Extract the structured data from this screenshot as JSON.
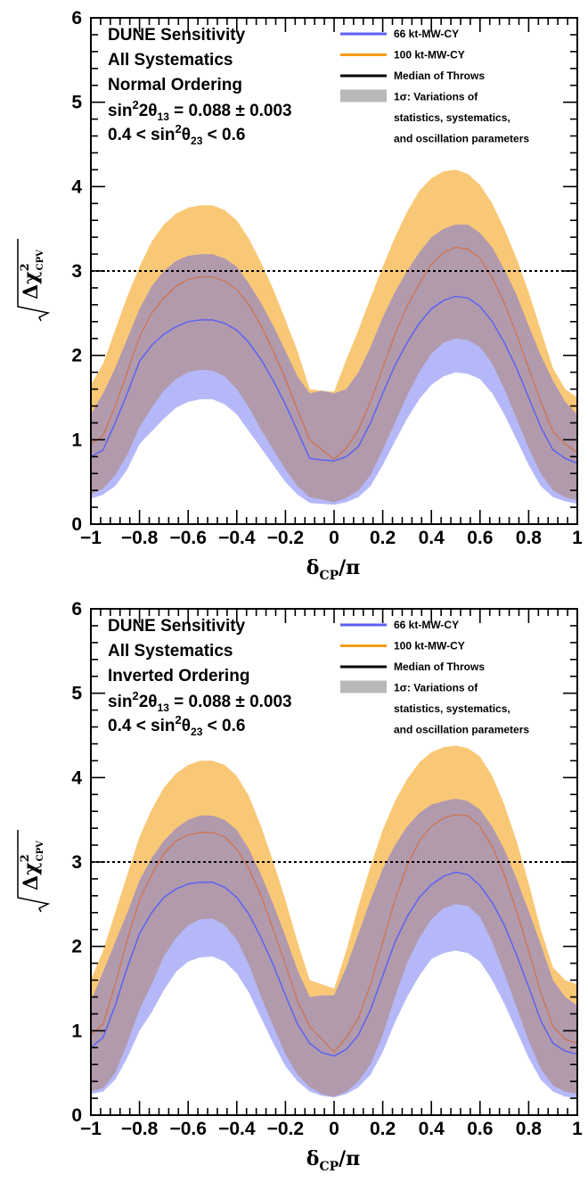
{
  "chart_data": [
    {
      "type": "area",
      "xlabel": "δCP/π",
      "ylabel": "√Δχ²CPV",
      "xlim": [
        -1,
        1
      ],
      "ylim": [
        0,
        6
      ],
      "x_ticks": [
        "−1",
        "−0.8",
        "−0.6",
        "−0.4",
        "−0.2",
        "0",
        "0.2",
        "0.4",
        "0.6",
        "0.8",
        "1"
      ],
      "y_ticks": [
        "0",
        "1",
        "2",
        "3",
        "4",
        "5",
        "6"
      ],
      "reference_line": 3,
      "annotations": [
        "DUNE Sensitivity",
        "All Systematics",
        "Normal Ordering",
        "sin²2θ₁₃ = 0.088 ± 0.003",
        "0.4 < sin²θ₂₃ < 0.6"
      ],
      "legend": {
        "placement": "top-right",
        "entries": [
          {
            "label": "66 kt-MW-CY",
            "color": "#5c62f0",
            "style": "line"
          },
          {
            "label": "100 kt-MW-CY",
            "color": "#f59b12",
            "style": "line"
          },
          {
            "label": "Median of Throws",
            "color": "#000000",
            "style": "line"
          },
          {
            "label": "1σ: Variations of",
            "color": "#b9b9b9",
            "style": "box"
          },
          {
            "label": "statistics, systematics,",
            "style": "text"
          },
          {
            "label": "and oscillation parameters",
            "style": "text"
          }
        ]
      },
      "x": [
        -1.0,
        -0.95,
        -0.9,
        -0.85,
        -0.8,
        -0.75,
        -0.7,
        -0.65,
        -0.6,
        -0.55,
        -0.5,
        -0.45,
        -0.4,
        -0.35,
        -0.3,
        -0.25,
        -0.2,
        -0.15,
        -0.1,
        -0.05,
        0.0,
        0.05,
        0.1,
        0.15,
        0.2,
        0.25,
        0.3,
        0.35,
        0.4,
        0.45,
        0.5,
        0.55,
        0.6,
        0.65,
        0.7,
        0.75,
        0.8,
        0.85,
        0.9,
        0.95,
        1.0
      ],
      "series": [
        {
          "name": "66 kt-MW-CY",
          "color": "#5c62f0",
          "median": [
            0.8,
            0.88,
            1.2,
            1.55,
            1.93,
            2.12,
            2.25,
            2.34,
            2.4,
            2.42,
            2.42,
            2.38,
            2.3,
            2.15,
            1.95,
            1.7,
            1.42,
            1.1,
            0.78,
            0.76,
            0.75,
            0.8,
            0.92,
            1.2,
            1.55,
            1.88,
            2.15,
            2.38,
            2.55,
            2.65,
            2.7,
            2.68,
            2.58,
            2.4,
            2.15,
            1.85,
            1.5,
            1.15,
            0.88,
            0.78,
            0.72
          ],
          "lower": [
            0.3,
            0.35,
            0.45,
            0.65,
            0.95,
            1.1,
            1.25,
            1.38,
            1.45,
            1.48,
            1.48,
            1.42,
            1.3,
            1.1,
            0.9,
            0.7,
            0.5,
            0.35,
            0.25,
            0.24,
            0.23,
            0.26,
            0.32,
            0.45,
            0.7,
            0.98,
            1.25,
            1.48,
            1.65,
            1.75,
            1.8,
            1.78,
            1.72,
            1.55,
            1.3,
            1.0,
            0.7,
            0.45,
            0.32,
            0.27,
            0.24
          ],
          "upper": [
            1.3,
            1.55,
            1.85,
            2.2,
            2.55,
            2.82,
            3.0,
            3.12,
            3.18,
            3.2,
            3.2,
            3.15,
            3.05,
            2.85,
            2.62,
            2.35,
            2.05,
            1.75,
            1.55,
            1.58,
            1.55,
            1.6,
            1.8,
            2.1,
            2.45,
            2.75,
            3.0,
            3.22,
            3.4,
            3.5,
            3.55,
            3.55,
            3.45,
            3.28,
            3.02,
            2.72,
            2.35,
            2.0,
            1.7,
            1.45,
            1.3
          ]
        },
        {
          "name": "100 kt-MW-CY",
          "color": "#f59b12",
          "median": [
            0.95,
            1.05,
            1.4,
            1.8,
            2.22,
            2.5,
            2.68,
            2.82,
            2.9,
            2.93,
            2.93,
            2.88,
            2.78,
            2.6,
            2.35,
            2.05,
            1.72,
            1.35,
            1.0,
            0.88,
            0.77,
            0.9,
            1.12,
            1.45,
            1.85,
            2.25,
            2.58,
            2.85,
            3.08,
            3.22,
            3.28,
            3.26,
            3.15,
            2.92,
            2.62,
            2.25,
            1.85,
            1.45,
            1.1,
            0.95,
            0.85
          ],
          "lower": [
            0.35,
            0.42,
            0.58,
            0.82,
            1.15,
            1.38,
            1.58,
            1.72,
            1.8,
            1.83,
            1.82,
            1.75,
            1.6,
            1.38,
            1.12,
            0.88,
            0.65,
            0.45,
            0.32,
            0.29,
            0.26,
            0.31,
            0.4,
            0.58,
            0.88,
            1.2,
            1.52,
            1.8,
            2.02,
            2.15,
            2.2,
            2.18,
            2.1,
            1.9,
            1.6,
            1.25,
            0.9,
            0.6,
            0.4,
            0.32,
            0.28
          ],
          "upper": [
            1.65,
            1.9,
            2.3,
            2.7,
            3.05,
            3.35,
            3.55,
            3.68,
            3.75,
            3.78,
            3.78,
            3.72,
            3.6,
            3.38,
            3.1,
            2.78,
            2.42,
            2.05,
            1.6,
            1.58,
            1.57,
            1.95,
            2.3,
            2.68,
            3.05,
            3.4,
            3.7,
            3.95,
            4.1,
            4.18,
            4.2,
            4.15,
            4.02,
            3.8,
            3.5,
            3.15,
            2.75,
            2.3,
            1.85,
            1.6,
            1.5
          ]
        }
      ]
    },
    {
      "type": "area",
      "xlabel": "δCP/π",
      "ylabel": "√Δχ²CPV",
      "xlim": [
        -1,
        1
      ],
      "ylim": [
        0,
        6
      ],
      "x_ticks": [
        "−1",
        "−0.8",
        "−0.6",
        "−0.4",
        "−0.2",
        "0",
        "0.2",
        "0.4",
        "0.6",
        "0.8",
        "1"
      ],
      "y_ticks": [
        "0",
        "1",
        "2",
        "3",
        "4",
        "5",
        "6"
      ],
      "reference_line": 3,
      "annotations": [
        "DUNE Sensitivity",
        "All Systematics",
        "Inverted Ordering",
        "sin²2θ₁₃ = 0.088 ± 0.003",
        "0.4 < sin²θ₂₃ < 0.6"
      ],
      "legend": {
        "placement": "top-right",
        "entries": [
          {
            "label": "66 kt-MW-CY",
            "color": "#5c62f0",
            "style": "line"
          },
          {
            "label": "100 kt-MW-CY",
            "color": "#f59b12",
            "style": "line"
          },
          {
            "label": "Median of Throws",
            "color": "#000000",
            "style": "line"
          },
          {
            "label": "1σ: Variations of",
            "color": "#b9b9b9",
            "style": "box"
          },
          {
            "label": "statistics, systematics,",
            "style": "text"
          },
          {
            "label": "and oscillation parameters",
            "style": "text"
          }
        ]
      },
      "x": [
        -1.0,
        -0.95,
        -0.9,
        -0.85,
        -0.8,
        -0.75,
        -0.7,
        -0.65,
        -0.6,
        -0.55,
        -0.5,
        -0.45,
        -0.4,
        -0.35,
        -0.3,
        -0.25,
        -0.2,
        -0.15,
        -0.1,
        -0.05,
        0.0,
        0.05,
        0.1,
        0.15,
        0.2,
        0.25,
        0.3,
        0.35,
        0.4,
        0.45,
        0.5,
        0.55,
        0.6,
        0.65,
        0.7,
        0.75,
        0.8,
        0.85,
        0.9,
        0.95,
        1.0
      ],
      "series": [
        {
          "name": "66 kt-MW-CY",
          "color": "#5c62f0",
          "median": [
            0.8,
            0.92,
            1.3,
            1.75,
            2.15,
            2.4,
            2.58,
            2.68,
            2.74,
            2.76,
            2.76,
            2.7,
            2.58,
            2.38,
            2.1,
            1.78,
            1.42,
            1.08,
            0.85,
            0.74,
            0.7,
            0.78,
            0.95,
            1.25,
            1.65,
            2.05,
            2.35,
            2.58,
            2.73,
            2.83,
            2.88,
            2.85,
            2.72,
            2.52,
            2.25,
            1.9,
            1.52,
            1.12,
            0.85,
            0.76,
            0.72
          ],
          "lower": [
            0.25,
            0.28,
            0.42,
            0.68,
            1.0,
            1.22,
            1.48,
            1.7,
            1.82,
            1.87,
            1.88,
            1.82,
            1.68,
            1.45,
            1.15,
            0.85,
            0.58,
            0.4,
            0.28,
            0.23,
            0.21,
            0.25,
            0.33,
            0.48,
            0.75,
            1.1,
            1.4,
            1.65,
            1.85,
            1.92,
            1.95,
            1.92,
            1.82,
            1.6,
            1.32,
            1.0,
            0.68,
            0.42,
            0.28,
            0.22,
            0.2
          ],
          "upper": [
            1.35,
            1.7,
            2.05,
            2.4,
            2.78,
            3.05,
            3.25,
            3.4,
            3.5,
            3.55,
            3.55,
            3.5,
            3.38,
            3.15,
            2.85,
            2.5,
            2.12,
            1.72,
            1.4,
            1.42,
            1.42,
            1.75,
            2.15,
            2.55,
            2.92,
            3.2,
            3.42,
            3.58,
            3.68,
            3.72,
            3.75,
            3.72,
            3.62,
            3.42,
            3.15,
            2.8,
            2.42,
            2.02,
            1.6,
            1.4,
            1.3
          ]
        },
        {
          "name": "100 kt-MW-CY",
          "color": "#f59b12",
          "median": [
            0.95,
            1.08,
            1.55,
            2.08,
            2.55,
            2.85,
            3.1,
            3.25,
            3.32,
            3.35,
            3.35,
            3.3,
            3.15,
            2.92,
            2.6,
            2.2,
            1.78,
            1.35,
            1.05,
            0.9,
            0.75,
            0.92,
            1.15,
            1.55,
            2.05,
            2.55,
            2.95,
            3.25,
            3.42,
            3.52,
            3.56,
            3.55,
            3.42,
            3.18,
            2.85,
            2.42,
            1.95,
            1.45,
            1.05,
            0.9,
            0.85
          ],
          "lower": [
            0.28,
            0.32,
            0.5,
            0.85,
            1.25,
            1.55,
            1.88,
            2.1,
            2.25,
            2.32,
            2.33,
            2.25,
            2.08,
            1.78,
            1.4,
            1.05,
            0.72,
            0.48,
            0.33,
            0.25,
            0.22,
            0.28,
            0.4,
            0.6,
            0.95,
            1.4,
            1.8,
            2.1,
            2.32,
            2.45,
            2.5,
            2.48,
            2.35,
            2.05,
            1.68,
            1.28,
            0.88,
            0.55,
            0.35,
            0.28,
            0.25
          ],
          "upper": [
            1.6,
            1.95,
            2.4,
            2.85,
            3.3,
            3.62,
            3.88,
            4.05,
            4.15,
            4.2,
            4.2,
            4.15,
            4.02,
            3.78,
            3.42,
            3.0,
            2.55,
            2.05,
            1.6,
            1.55,
            1.5,
            1.95,
            2.48,
            2.95,
            3.38,
            3.72,
            3.98,
            4.18,
            4.3,
            4.36,
            4.38,
            4.35,
            4.25,
            4.02,
            3.68,
            3.25,
            2.75,
            2.2,
            1.75,
            1.6,
            1.55
          ]
        }
      ]
    }
  ]
}
